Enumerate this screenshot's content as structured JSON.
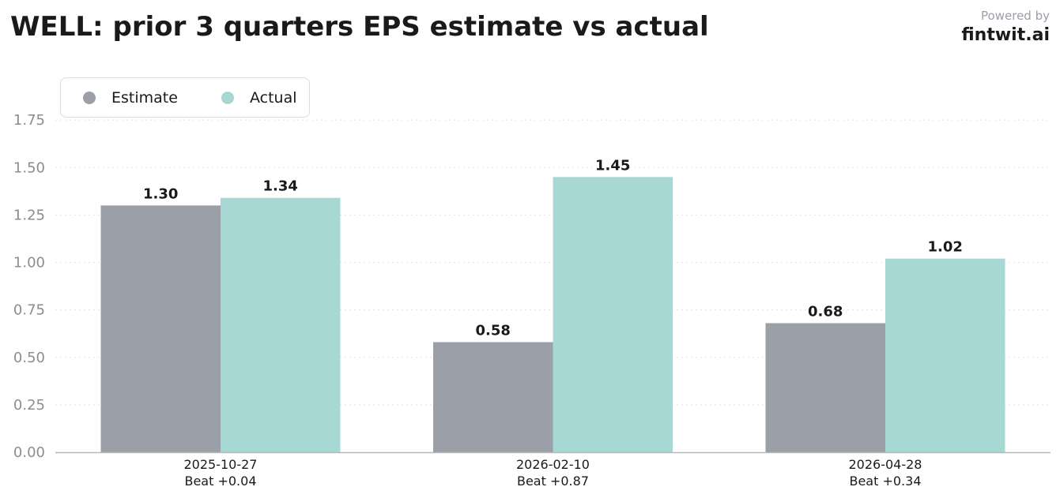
{
  "header": {
    "title": "WELL: prior 3 quarters EPS estimate vs actual",
    "powered_by": "Powered by",
    "brand": "fintwit.ai"
  },
  "chart_data": {
    "type": "bar",
    "title": "WELL: prior 3 quarters EPS estimate vs actual",
    "categories": [
      "2025-10-27",
      "2026-02-10",
      "2026-04-28"
    ],
    "category_notes": [
      "Beat +0.04",
      "Beat +0.87",
      "Beat +0.34"
    ],
    "series": [
      {
        "name": "Estimate",
        "values": [
          1.3,
          0.58,
          0.68
        ],
        "color": "#9b9fa7"
      },
      {
        "name": "Actual",
        "values": [
          1.34,
          1.45,
          1.02
        ],
        "color": "#a8d8d4"
      }
    ],
    "value_labels": {
      "Estimate": [
        "1.30",
        "0.58",
        "0.68"
      ],
      "Actual": [
        "1.34",
        "1.45",
        "1.02"
      ]
    },
    "ylim": [
      0,
      1.75
    ],
    "yticks": [
      0.0,
      0.25,
      0.5,
      0.75,
      1.0,
      1.25,
      1.5,
      1.75
    ],
    "ytick_labels": [
      "0.00",
      "0.25",
      "0.50",
      "0.75",
      "1.00",
      "1.25",
      "1.50",
      "1.75"
    ],
    "xlabel": "",
    "ylabel": "",
    "grid": true,
    "legend_position": "top-left"
  }
}
